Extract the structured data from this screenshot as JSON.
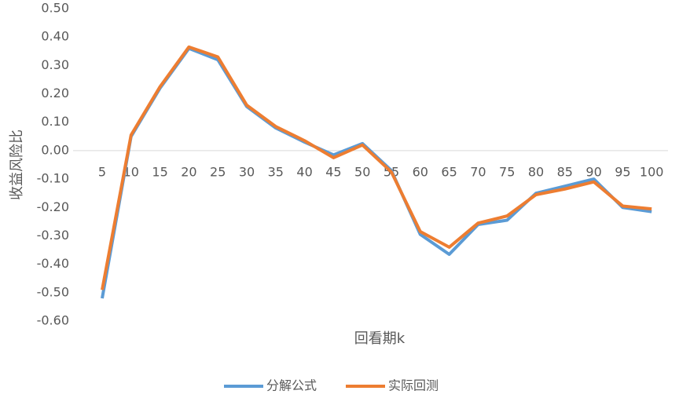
{
  "chart_data": {
    "type": "line",
    "x_label": "回看期k",
    "y_label": "收益风险比",
    "categories": [
      "5",
      "10",
      "15",
      "20",
      "25",
      "30",
      "35",
      "40",
      "45",
      "50",
      "55",
      "60",
      "65",
      "70",
      "75",
      "80",
      "85",
      "90",
      "95",
      "100"
    ],
    "series": [
      {
        "name": "分解公式",
        "color": "#5b9bd5",
        "values": [
          -0.52,
          0.05,
          0.22,
          0.36,
          0.32,
          0.155,
          0.08,
          0.03,
          -0.015,
          0.025,
          -0.07,
          -0.295,
          -0.365,
          -0.26,
          -0.245,
          -0.15,
          -0.125,
          -0.1,
          -0.2,
          -0.215
        ]
      },
      {
        "name": "实际回测",
        "color": "#ed7d31",
        "values": [
          -0.49,
          0.055,
          0.225,
          0.365,
          0.33,
          0.16,
          0.085,
          0.035,
          -0.025,
          0.02,
          -0.075,
          -0.285,
          -0.34,
          -0.255,
          -0.23,
          -0.155,
          -0.135,
          -0.11,
          -0.195,
          -0.205
        ]
      }
    ],
    "ylim": [
      -0.6,
      0.5
    ],
    "yticks": [
      {
        "value": 0.5,
        "label": "0.50"
      },
      {
        "value": 0.4,
        "label": "0.40"
      },
      {
        "value": 0.3,
        "label": "0.30"
      },
      {
        "value": 0.2,
        "label": "0.20"
      },
      {
        "value": 0.1,
        "label": "0.10"
      },
      {
        "value": 0,
        "label": "0.00"
      },
      {
        "value": -0.1,
        "label": "-0.10"
      },
      {
        "value": -0.2,
        "label": "-0.20"
      },
      {
        "value": -0.3,
        "label": "-0.30"
      },
      {
        "value": -0.4,
        "label": "-0.40"
      },
      {
        "value": -0.5,
        "label": "-0.50"
      },
      {
        "value": -0.6,
        "label": "-0.60"
      }
    ],
    "grid": false,
    "legend": "bottom"
  }
}
